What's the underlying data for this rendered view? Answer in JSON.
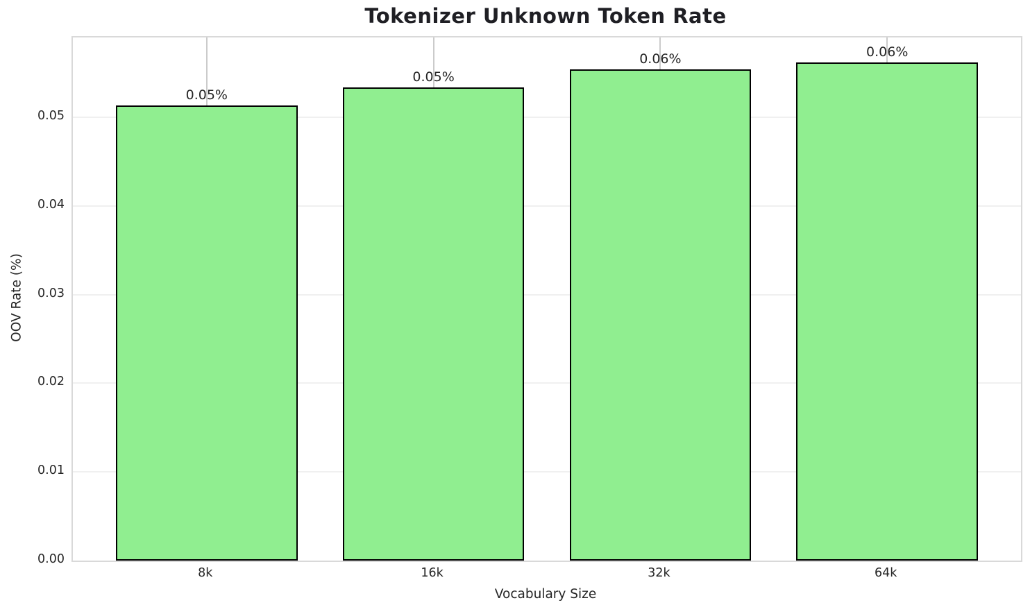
{
  "chart_data": {
    "type": "bar",
    "title": "Tokenizer Unknown Token Rate",
    "xlabel": "Vocabulary Size",
    "ylabel": "OOV Rate (%)",
    "categories": [
      "8k",
      "16k",
      "32k",
      "64k"
    ],
    "values": [
      0.0513,
      0.0534,
      0.0554,
      0.0562
    ],
    "bar_labels": [
      "0.05%",
      "0.05%",
      "0.06%",
      "0.06%"
    ],
    "yticks": [
      {
        "value": 0.0,
        "label": "0.00"
      },
      {
        "value": 0.01,
        "label": "0.01"
      },
      {
        "value": 0.02,
        "label": "0.02"
      },
      {
        "value": 0.03,
        "label": "0.03"
      },
      {
        "value": 0.04,
        "label": "0.04"
      },
      {
        "value": 0.05,
        "label": "0.05"
      }
    ],
    "ylim": [
      0,
      0.059
    ],
    "bar_color": "#90EE90",
    "bar_edge_color": "#000000",
    "grid": true,
    "legend": false
  }
}
